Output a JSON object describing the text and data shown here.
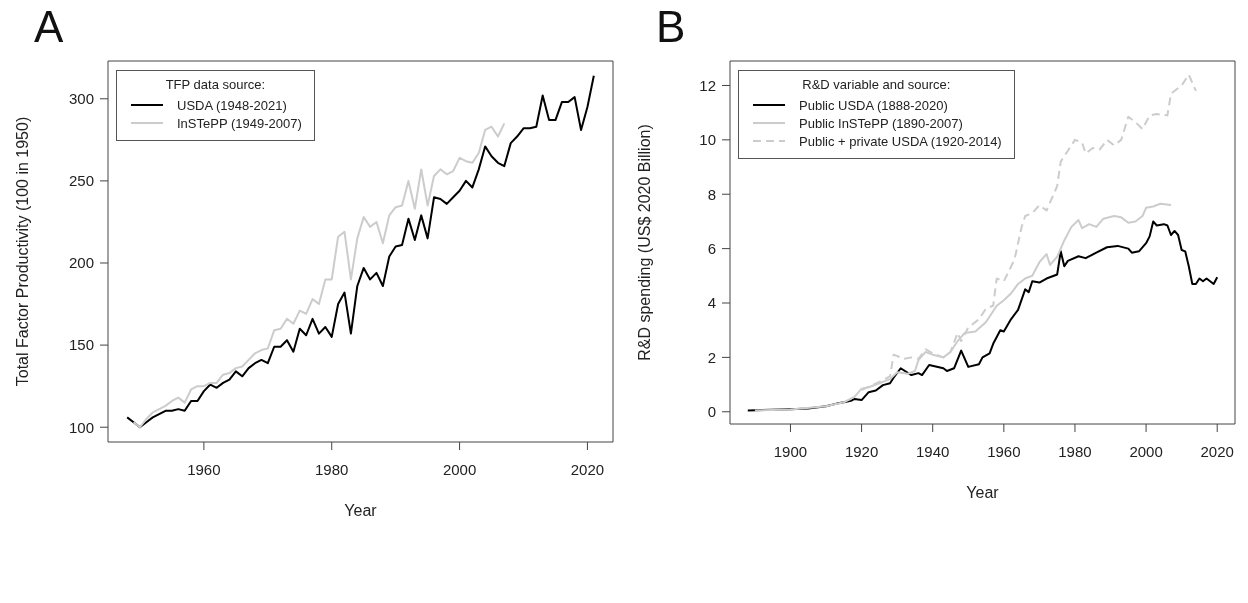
{
  "chart_data": [
    {
      "type": "line",
      "title": "A",
      "xlabel": "Year",
      "ylabel": "Total Factor Productivity (100 in 1950)",
      "legend_title": "TFP data source:",
      "legend": "top left",
      "grid": false,
      "marker": "none",
      "xlim": [
        1945,
        2024
      ],
      "ylim": [
        91,
        323
      ],
      "xticks": [
        1960,
        1980,
        2000,
        2020
      ],
      "yticks": [
        100,
        150,
        200,
        250,
        300
      ],
      "series": [
        {
          "name": "USDA (1948-2021)",
          "color": "#000000",
          "line_style": "solid",
          "x": [
            1948,
            1949,
            1950,
            1951,
            1952,
            1953,
            1954,
            1955,
            1956,
            1957,
            1958,
            1959,
            1960,
            1961,
            1962,
            1963,
            1964,
            1965,
            1966,
            1967,
            1968,
            1969,
            1970,
            1971,
            1972,
            1973,
            1974,
            1975,
            1976,
            1977,
            1978,
            1979,
            1980,
            1981,
            1982,
            1983,
            1984,
            1985,
            1986,
            1987,
            1988,
            1989,
            1990,
            1991,
            1992,
            1993,
            1994,
            1995,
            1996,
            1997,
            1998,
            1999,
            2000,
            2001,
            2002,
            2003,
            2004,
            2005,
            2006,
            2007,
            2008,
            2009,
            2010,
            2011,
            2012,
            2013,
            2014,
            2015,
            2016,
            2017,
            2018,
            2019,
            2020,
            2021
          ],
          "values": [
            106,
            103,
            100,
            103,
            106,
            108,
            110,
            110,
            111,
            110,
            116,
            116,
            122,
            126,
            124,
            127,
            129,
            134,
            131,
            136,
            139,
            141,
            139,
            149,
            149,
            153,
            146,
            160,
            156,
            166,
            157,
            161,
            155,
            175,
            182,
            157,
            186,
            197,
            190,
            194,
            186,
            204,
            210,
            211,
            227,
            214,
            229,
            215,
            240,
            239,
            236,
            240,
            244,
            250,
            246,
            257,
            271,
            265,
            261,
            259,
            273,
            277,
            282,
            282,
            283,
            302,
            287,
            287,
            298,
            298,
            301,
            281,
            295,
            314
          ]
        },
        {
          "name": "InSTePP (1949-2007)",
          "color": "#cccccc",
          "line_style": "solid",
          "x": [
            1949,
            1950,
            1951,
            1952,
            1953,
            1954,
            1955,
            1956,
            1957,
            1958,
            1959,
            1960,
            1961,
            1962,
            1963,
            1964,
            1965,
            1966,
            1967,
            1968,
            1969,
            1970,
            1971,
            1972,
            1973,
            1974,
            1975,
            1976,
            1977,
            1978,
            1979,
            1980,
            1981,
            1982,
            1983,
            1984,
            1985,
            1986,
            1987,
            1988,
            1989,
            1990,
            1991,
            1992,
            1993,
            1994,
            1995,
            1996,
            1997,
            1998,
            1999,
            2000,
            2001,
            2002,
            2003,
            2004,
            2005,
            2006,
            2007
          ],
          "values": [
            103,
            100,
            105,
            109,
            111,
            113,
            116,
            118,
            115,
            123,
            125,
            125,
            127,
            127,
            132,
            133,
            136,
            137,
            141,
            145,
            147,
            148,
            159,
            160,
            166,
            163,
            171,
            169,
            178,
            175,
            190,
            190,
            216,
            219,
            190,
            215,
            228,
            222,
            225,
            212,
            229,
            234,
            235,
            250,
            233,
            257,
            235,
            253,
            257,
            254,
            256,
            264,
            262,
            261,
            267,
            281,
            283,
            277,
            285
          ]
        }
      ]
    },
    {
      "type": "line",
      "title": "B",
      "xlabel": "Year",
      "ylabel": "R&D spending (US$ 2020 Billion)",
      "legend_title": "R&D variable and source:",
      "legend": "top left",
      "grid": false,
      "marker": "none",
      "xlim": [
        1883,
        2025
      ],
      "ylim": [
        -0.45,
        12.9
      ],
      "xticks": [
        1900,
        1920,
        1940,
        1960,
        1980,
        2000,
        2020
      ],
      "yticks": [
        0,
        2,
        4,
        6,
        8,
        10,
        12
      ],
      "series": [
        {
          "name": "Public USDA (1888-2020)",
          "color": "#000000",
          "line_style": "solid",
          "x": [
            1888,
            1900,
            1905,
            1910,
            1913,
            1915,
            1917,
            1918,
            1920,
            1922,
            1924,
            1926,
            1928,
            1929,
            1931,
            1934,
            1936,
            1937,
            1939,
            1943,
            1944,
            1946,
            1948,
            1950,
            1953,
            1954,
            1956,
            1957,
            1959,
            1960,
            1962,
            1964,
            1966,
            1967,
            1968,
            1970,
            1972,
            1975,
            1976,
            1977,
            1978,
            1981,
            1983,
            1986,
            1989,
            1992,
            1995,
            1996,
            1998,
            2000,
            2001,
            2002,
            2003,
            2005,
            2006,
            2007,
            2008,
            2009,
            2010,
            2011,
            2012,
            2013,
            2014,
            2015,
            2016,
            2017,
            2019,
            2020
          ],
          "values": [
            0.05,
            0.09,
            0.12,
            0.2,
            0.3,
            0.35,
            0.4,
            0.47,
            0.43,
            0.72,
            0.78,
            0.98,
            1.05,
            1.25,
            1.6,
            1.35,
            1.42,
            1.35,
            1.72,
            1.6,
            1.5,
            1.6,
            2.25,
            1.65,
            1.75,
            2.0,
            2.15,
            2.5,
            3.0,
            2.95,
            3.4,
            3.75,
            4.5,
            4.4,
            4.8,
            4.75,
            4.9,
            5.05,
            5.9,
            5.35,
            5.55,
            5.72,
            5.65,
            5.85,
            6.05,
            6.1,
            6.0,
            5.85,
            5.9,
            6.2,
            6.45,
            7.0,
            6.85,
            6.9,
            6.85,
            6.5,
            6.65,
            6.5,
            5.95,
            5.9,
            5.35,
            4.7,
            4.7,
            4.9,
            4.8,
            4.9,
            4.7,
            4.95
          ]
        },
        {
          "name": "Public InSTePP (1890-2007)",
          "color": "#cccccc",
          "line_style": "solid",
          "x": [
            1890,
            1900,
            1910,
            1915,
            1918,
            1920,
            1922,
            1925,
            1928,
            1930,
            1933,
            1935,
            1936,
            1938,
            1940,
            1943,
            1945,
            1947,
            1949,
            1952,
            1955,
            1958,
            1960,
            1962,
            1964,
            1966,
            1968,
            1970,
            1972,
            1973,
            1975,
            1977,
            1979,
            1981,
            1982,
            1984,
            1986,
            1988,
            1991,
            1993,
            1995,
            1997,
            1999,
            2000,
            2002,
            2004,
            2007
          ],
          "values": [
            0.05,
            0.08,
            0.2,
            0.35,
            0.55,
            0.85,
            0.9,
            1.05,
            1.2,
            1.45,
            1.4,
            1.5,
            1.9,
            2.2,
            2.1,
            2.0,
            2.2,
            2.6,
            2.9,
            2.95,
            3.3,
            3.9,
            4.1,
            4.35,
            4.7,
            4.9,
            5.0,
            5.5,
            5.8,
            5.4,
            5.7,
            6.3,
            6.8,
            7.05,
            6.75,
            6.9,
            6.8,
            7.1,
            7.2,
            7.15,
            6.95,
            7.0,
            7.2,
            7.5,
            7.55,
            7.65,
            7.6
          ]
        },
        {
          "name": "Public + private USDA (1920-2014)",
          "color": "#cccccc",
          "line_style": "dashed",
          "x": [
            1920,
            1925,
            1928,
            1929,
            1932,
            1934,
            1936,
            1938,
            1940,
            1943,
            1945,
            1947,
            1948,
            1950,
            1953,
            1955,
            1957,
            1958,
            1960,
            1963,
            1965,
            1966,
            1968,
            1970,
            1972,
            1974,
            1975,
            1976,
            1978,
            1980,
            1982,
            1983,
            1985,
            1987,
            1989,
            1991,
            1993,
            1995,
            1997,
            1999,
            2001,
            2003,
            2006,
            2007,
            2010,
            2012,
            2014
          ],
          "values": [
            0.8,
            1.1,
            1.3,
            2.1,
            1.95,
            2.0,
            1.95,
            2.3,
            2.15,
            2.0,
            2.2,
            2.9,
            2.6,
            3.1,
            3.4,
            3.8,
            3.9,
            4.9,
            4.8,
            5.6,
            6.8,
            7.2,
            7.3,
            7.6,
            7.4,
            8.0,
            8.3,
            9.2,
            9.6,
            10.0,
            9.9,
            9.5,
            9.7,
            9.65,
            10.0,
            9.8,
            10.0,
            10.85,
            10.65,
            10.4,
            10.9,
            10.95,
            10.9,
            11.7,
            12.0,
            12.4,
            11.8
          ]
        }
      ]
    }
  ]
}
